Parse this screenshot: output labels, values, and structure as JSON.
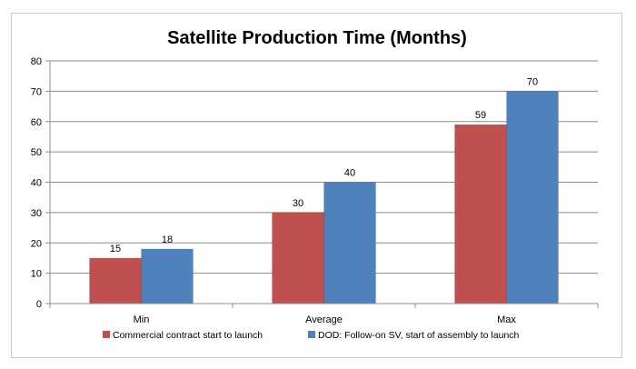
{
  "chart_data": {
    "type": "bar",
    "title": "Satellite Production Time (Months)",
    "categories": [
      "Min",
      "Average",
      "Max"
    ],
    "series": [
      {
        "name": "Commercial contract start to launch",
        "values": [
          15,
          30,
          59
        ],
        "color": "#c0504d"
      },
      {
        "name": "DOD: Follow-on SV, start of assembly to launch",
        "values": [
          18,
          40,
          70
        ],
        "color": "#4f81bd"
      }
    ],
    "ylim": [
      0,
      80
    ],
    "yticks": [
      0,
      10,
      20,
      30,
      40,
      50,
      60,
      70,
      80
    ],
    "grid": true,
    "legend": "bottom",
    "data_labels": true
  }
}
